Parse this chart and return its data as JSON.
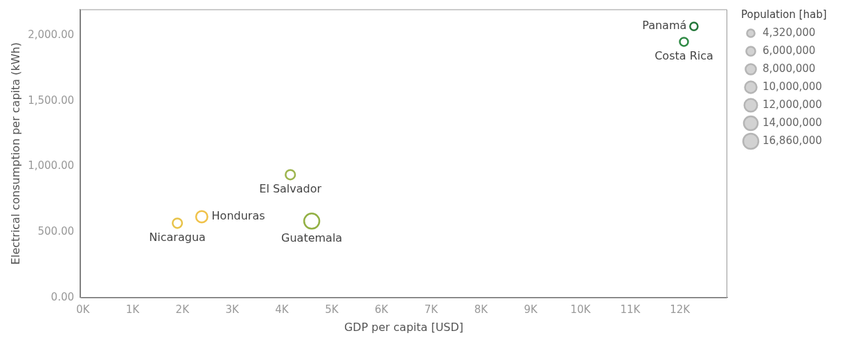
{
  "chart_data": {
    "type": "bubble",
    "xlabel": "GDP per capita [USD]",
    "ylabel": "Electrical consumption per capita (kWh)",
    "legend_title": "Population [hab]",
    "xlim": [
      -50,
      12950
    ],
    "ylim": [
      0,
      2200
    ],
    "xticks": [
      {
        "value": 0,
        "label": "0K"
      },
      {
        "value": 1000,
        "label": "1K"
      },
      {
        "value": 2000,
        "label": "2K"
      },
      {
        "value": 3000,
        "label": "3K"
      },
      {
        "value": 4000,
        "label": "4K"
      },
      {
        "value": 5000,
        "label": "5K"
      },
      {
        "value": 6000,
        "label": "6K"
      },
      {
        "value": 7000,
        "label": "7K"
      },
      {
        "value": 8000,
        "label": "8K"
      },
      {
        "value": 9000,
        "label": "9K"
      },
      {
        "value": 10000,
        "label": "10K"
      },
      {
        "value": 11000,
        "label": "11K"
      },
      {
        "value": 12000,
        "label": "12K"
      }
    ],
    "yticks": [
      {
        "value": 0,
        "label": "0.00"
      },
      {
        "value": 500,
        "label": "500.00"
      },
      {
        "value": 1000,
        "label": "1,000.00"
      },
      {
        "value": 1500,
        "label": "1,500.00"
      },
      {
        "value": 2000,
        "label": "2,000.00"
      }
    ],
    "size_legend": [
      {
        "value": 4320000,
        "label": "4,320,000"
      },
      {
        "value": 6000000,
        "label": "6,000,000"
      },
      {
        "value": 8000000,
        "label": "8,000,000"
      },
      {
        "value": 10000000,
        "label": "10,000,000"
      },
      {
        "value": 12000000,
        "label": "12,000,000"
      },
      {
        "value": 14000000,
        "label": "14,000,000"
      },
      {
        "value": 16860000,
        "label": "16,860,000"
      }
    ],
    "x": [
      1900,
      2390,
      4170,
      4600,
      12080,
      12280
    ],
    "values": [
      568,
      617,
      938,
      584,
      1952,
      2070
    ],
    "sizes": [
      6500000,
      9500000,
      6500000,
      16860000,
      5000000,
      4320000
    ],
    "colors": [
      "#e8c34a",
      "#f0c24a",
      "#9db54e",
      "#93b044",
      "#2f8a45",
      "#24773a"
    ],
    "annotations": [
      {
        "text": "Nicaragua",
        "x": 1900,
        "y": 568
      },
      {
        "text": "Honduras",
        "x": 2390,
        "y": 617
      },
      {
        "text": "El Salvador",
        "x": 4170,
        "y": 938
      },
      {
        "text": "Guatemala",
        "x": 4600,
        "y": 584
      },
      {
        "text": "Costa Rica",
        "x": 12080,
        "y": 1952
      },
      {
        "text": "Panamá",
        "x": 12280,
        "y": 2070
      }
    ],
    "grid": false
  }
}
